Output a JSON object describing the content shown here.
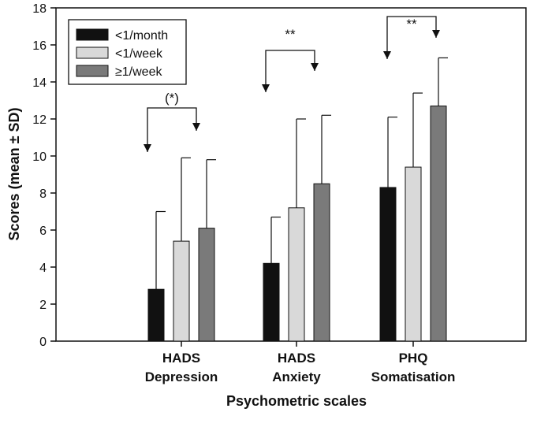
{
  "chart_data": {
    "type": "bar",
    "categories": [
      [
        "HADS",
        "Depression"
      ],
      [
        "HADS",
        "Anxiety"
      ],
      [
        "PHQ",
        "Somatisation"
      ]
    ],
    "series": [
      {
        "name": "<1/month",
        "values": [
          2.8,
          4.2,
          8.3
        ],
        "sd_upper": [
          7.0,
          6.7,
          12.1
        ],
        "color": "#111111"
      },
      {
        "name": "<1/week",
        "values": [
          5.4,
          7.2,
          9.4
        ],
        "sd_upper": [
          9.9,
          12.0,
          13.4
        ],
        "color": "#d9d9d9"
      },
      {
        "name": "≥1/week",
        "values": [
          6.1,
          8.5,
          12.7
        ],
        "sd_upper": [
          9.8,
          12.2,
          15.3
        ],
        "color": "#7a7a7a"
      }
    ],
    "significance": [
      {
        "category": 0,
        "label": "(*)"
      },
      {
        "category": 1,
        "label": "**"
      },
      {
        "category": 2,
        "label": "**"
      }
    ],
    "xlabel": "Psychometric scales",
    "ylabel": "Scores (mean ± SD)",
    "ylim": [
      0,
      18
    ],
    "yticks": [
      0,
      2,
      4,
      6,
      8,
      10,
      12,
      14,
      16,
      18
    ],
    "legend_position": "top-left",
    "grid": false
  }
}
